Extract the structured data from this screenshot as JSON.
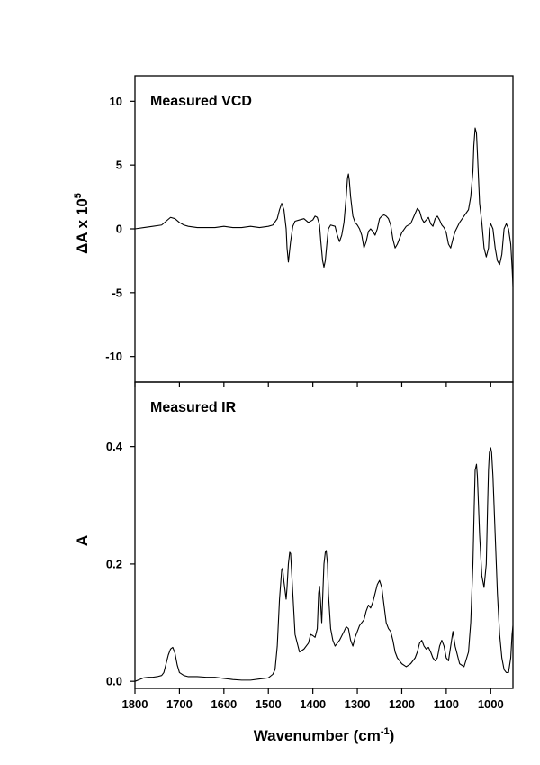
{
  "chart_data": [
    {
      "type": "line",
      "title": "Measured VCD",
      "ylabel_main": "ΔA x 10",
      "ylabel_exp": "5",
      "xlim": [
        1800,
        950
      ],
      "ylim": [
        -12,
        12
      ],
      "yticks": [
        10,
        5,
        0,
        -5,
        -10
      ],
      "ytick_labels": [
        "10",
        "5",
        "0",
        "-5",
        "-10"
      ],
      "x": [
        1800,
        1780,
        1760,
        1740,
        1730,
        1720,
        1710,
        1700,
        1690,
        1680,
        1660,
        1640,
        1620,
        1600,
        1580,
        1560,
        1540,
        1520,
        1500,
        1490,
        1480,
        1475,
        1470,
        1465,
        1460,
        1458,
        1455,
        1450,
        1445,
        1440,
        1430,
        1420,
        1410,
        1400,
        1395,
        1390,
        1385,
        1382,
        1378,
        1375,
        1372,
        1368,
        1365,
        1360,
        1350,
        1345,
        1340,
        1335,
        1330,
        1325,
        1322,
        1320,
        1318,
        1315,
        1310,
        1305,
        1300,
        1295,
        1290,
        1285,
        1280,
        1275,
        1270,
        1265,
        1260,
        1255,
        1250,
        1245,
        1240,
        1235,
        1230,
        1225,
        1220,
        1215,
        1210,
        1200,
        1190,
        1180,
        1170,
        1165,
        1160,
        1155,
        1150,
        1145,
        1140,
        1135,
        1130,
        1125,
        1120,
        1115,
        1110,
        1105,
        1100,
        1095,
        1090,
        1085,
        1080,
        1070,
        1060,
        1050,
        1045,
        1040,
        1038,
        1035,
        1032,
        1030,
        1025,
        1020,
        1015,
        1010,
        1005,
        1003,
        1000,
        995,
        990,
        985,
        980,
        975,
        970,
        965,
        960,
        955,
        952,
        950
      ],
      "y": [
        0,
        0.1,
        0.2,
        0.3,
        0.6,
        0.9,
        0.8,
        0.5,
        0.3,
        0.2,
        0.1,
        0.1,
        0.1,
        0.2,
        0.1,
        0.1,
        0.2,
        0.1,
        0.2,
        0.3,
        0.8,
        1.5,
        2.0,
        1.5,
        0,
        -1.5,
        -2.6,
        -1,
        0.2,
        0.6,
        0.7,
        0.8,
        0.5,
        0.7,
        1.0,
        0.9,
        0.3,
        -1,
        -2.5,
        -3.0,
        -2.5,
        -1,
        0,
        0.3,
        0.2,
        -0.5,
        -1,
        -0.5,
        0.5,
        2.5,
        4.0,
        4.3,
        3.8,
        2.5,
        1,
        0.5,
        0.3,
        0,
        -0.5,
        -1.5,
        -1.0,
        -0.2,
        0,
        -0.2,
        -0.5,
        0,
        0.8,
        1.0,
        1.1,
        1.0,
        0.8,
        0.3,
        -0.8,
        -1.5,
        -1.2,
        -0.3,
        0.2,
        0.4,
        1.2,
        1.6,
        1.4,
        0.8,
        0.5,
        0.7,
        0.9,
        0.4,
        0.2,
        0.8,
        1.0,
        0.7,
        0.3,
        0.1,
        -0.3,
        -1.2,
        -1.5,
        -0.8,
        -0.2,
        0.5,
        1.0,
        1.5,
        2.5,
        4.5,
        6.5,
        7.9,
        7.5,
        6.0,
        2.0,
        0.5,
        -1.5,
        -2.2,
        -1.5,
        0,
        0.4,
        0,
        -1.5,
        -2.5,
        -2.8,
        -2.0,
        0,
        0.4,
        0,
        -1.2,
        -3.0,
        -4.5
      ],
      "grid": false
    },
    {
      "type": "line",
      "title": "Measured IR",
      "ylabel": "A",
      "xlabel_main": "Wavenumber (cm",
      "xlabel_sup": "-1",
      "xlabel_end": ")",
      "xlim": [
        1800,
        950
      ],
      "ylim": [
        -0.012,
        0.51
      ],
      "yticks": [
        0.0,
        0.2,
        0.4
      ],
      "ytick_labels": [
        "0.0",
        "0.2",
        "0.4"
      ],
      "xticks": [
        1800,
        1700,
        1600,
        1500,
        1400,
        1300,
        1200,
        1100,
        1000
      ],
      "xtick_labels": [
        "1800",
        "1700",
        "1600",
        "1500",
        "1400",
        "1300",
        "1200",
        "1100",
        "1000"
      ],
      "x": [
        1800,
        1790,
        1780,
        1770,
        1760,
        1750,
        1740,
        1735,
        1730,
        1725,
        1720,
        1715,
        1710,
        1705,
        1700,
        1690,
        1680,
        1660,
        1640,
        1620,
        1600,
        1580,
        1560,
        1540,
        1520,
        1500,
        1490,
        1485,
        1480,
        1475,
        1470,
        1468,
        1465,
        1460,
        1458,
        1455,
        1452,
        1450,
        1445,
        1440,
        1430,
        1420,
        1410,
        1405,
        1400,
        1395,
        1390,
        1387,
        1385,
        1383,
        1380,
        1378,
        1375,
        1372,
        1370,
        1367,
        1365,
        1360,
        1355,
        1350,
        1340,
        1330,
        1325,
        1320,
        1315,
        1310,
        1305,
        1300,
        1295,
        1290,
        1285,
        1280,
        1275,
        1270,
        1265,
        1260,
        1255,
        1250,
        1245,
        1240,
        1235,
        1230,
        1225,
        1220,
        1215,
        1210,
        1200,
        1190,
        1180,
        1170,
        1165,
        1160,
        1155,
        1150,
        1145,
        1140,
        1135,
        1130,
        1125,
        1120,
        1115,
        1110,
        1105,
        1100,
        1095,
        1090,
        1085,
        1080,
        1070,
        1060,
        1050,
        1045,
        1040,
        1037,
        1035,
        1032,
        1030,
        1025,
        1020,
        1015,
        1010,
        1007,
        1005,
        1003,
        1000,
        998,
        995,
        990,
        985,
        980,
        975,
        970,
        965,
        960,
        955,
        952,
        950
      ],
      "y": [
        0,
        0.003,
        0.006,
        0.007,
        0.007,
        0.008,
        0.01,
        0.015,
        0.03,
        0.045,
        0.055,
        0.058,
        0.048,
        0.028,
        0.015,
        0.01,
        0.008,
        0.008,
        0.007,
        0.007,
        0.005,
        0.003,
        0.002,
        0.002,
        0.004,
        0.006,
        0.012,
        0.02,
        0.06,
        0.14,
        0.19,
        0.193,
        0.17,
        0.14,
        0.16,
        0.2,
        0.22,
        0.218,
        0.15,
        0.08,
        0.05,
        0.055,
        0.065,
        0.08,
        0.078,
        0.075,
        0.09,
        0.15,
        0.162,
        0.14,
        0.1,
        0.14,
        0.2,
        0.22,
        0.223,
        0.2,
        0.15,
        0.09,
        0.07,
        0.06,
        0.07,
        0.085,
        0.093,
        0.09,
        0.07,
        0.06,
        0.075,
        0.085,
        0.095,
        0.1,
        0.105,
        0.12,
        0.13,
        0.125,
        0.135,
        0.15,
        0.165,
        0.172,
        0.16,
        0.13,
        0.1,
        0.09,
        0.085,
        0.07,
        0.05,
        0.04,
        0.03,
        0.025,
        0.03,
        0.04,
        0.05,
        0.065,
        0.07,
        0.06,
        0.055,
        0.058,
        0.05,
        0.04,
        0.035,
        0.04,
        0.06,
        0.07,
        0.06,
        0.04,
        0.035,
        0.06,
        0.085,
        0.06,
        0.03,
        0.025,
        0.05,
        0.1,
        0.2,
        0.3,
        0.36,
        0.37,
        0.35,
        0.25,
        0.18,
        0.16,
        0.2,
        0.3,
        0.36,
        0.39,
        0.398,
        0.39,
        0.35,
        0.25,
        0.15,
        0.08,
        0.04,
        0.02,
        0.015,
        0.015,
        0.04,
        0.08,
        0.095
      ]
    }
  ]
}
